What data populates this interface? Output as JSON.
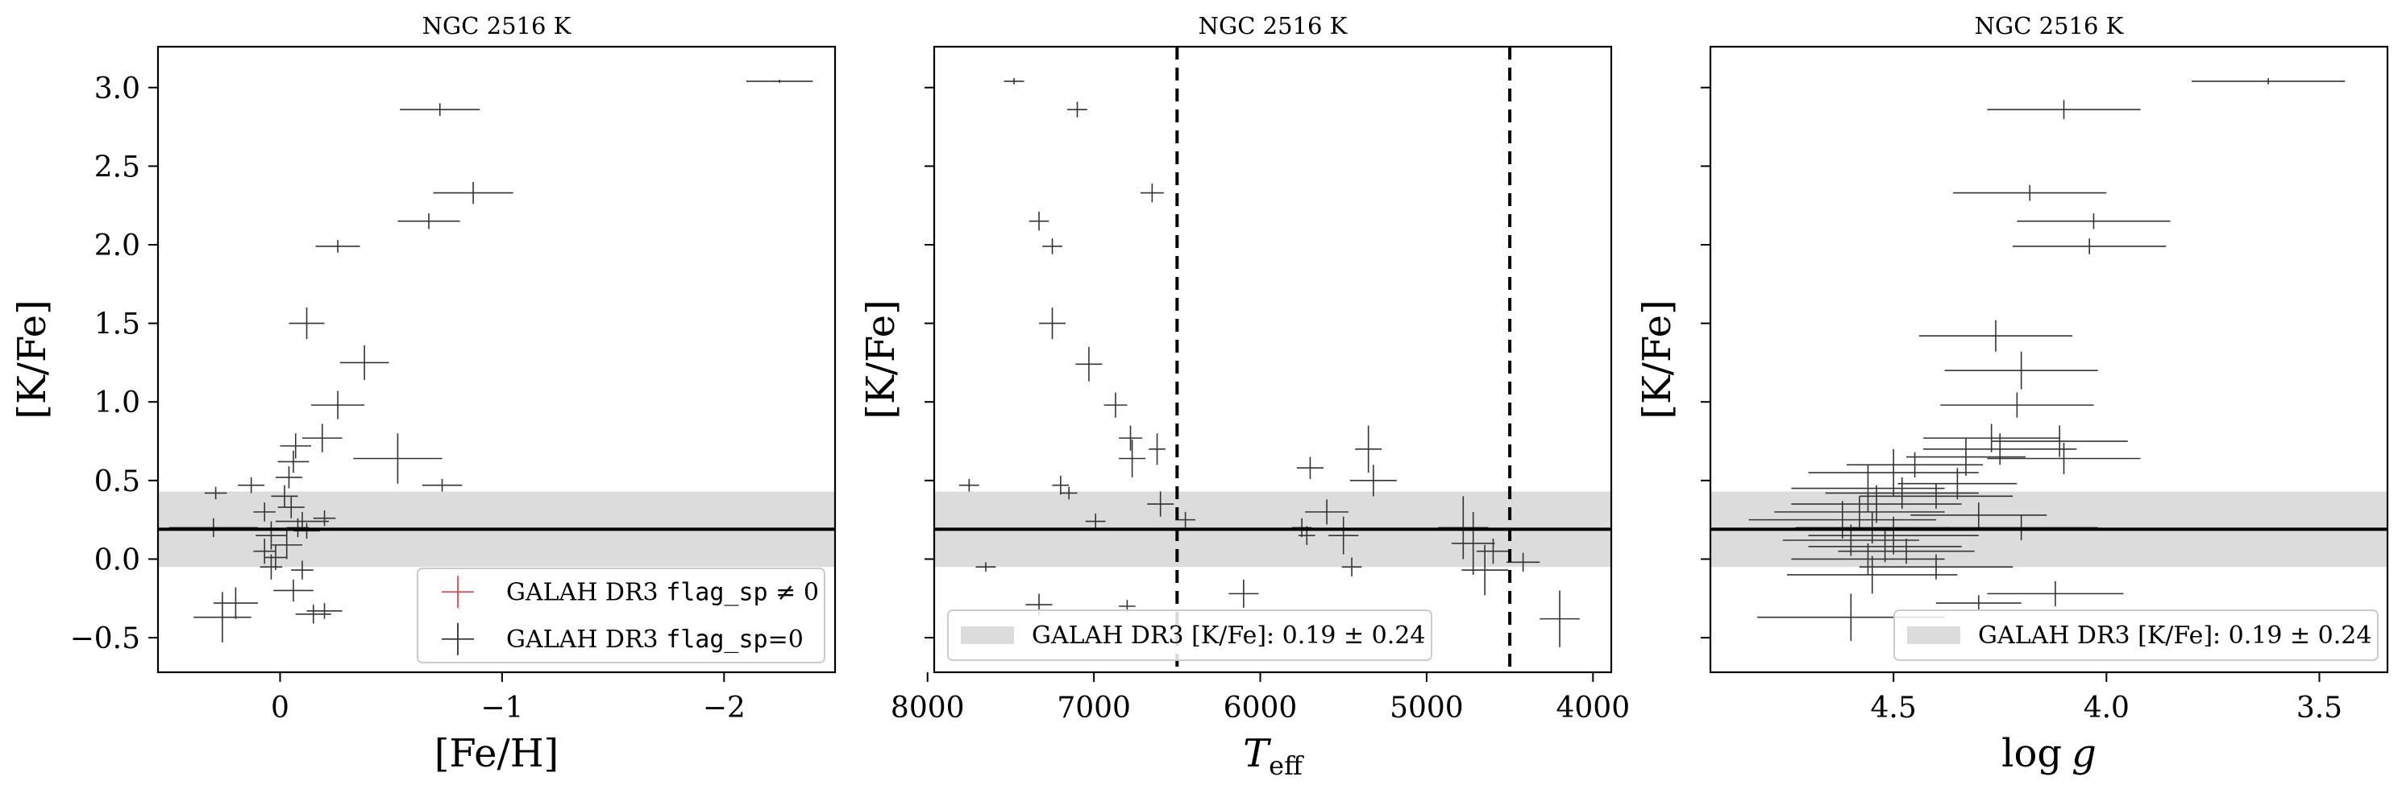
{
  "chart_data": [
    {
      "type": "scatter",
      "title": "NGC 2516 K",
      "xlabel": "[Fe/H]",
      "ylabel": "[K/Fe]",
      "xlim": [
        0.55,
        -2.5
      ],
      "ylim": [
        -0.72,
        3.26
      ],
      "x_inverted": true,
      "xticks": [
        0,
        -1,
        -2
      ],
      "xtick_labels": [
        "0",
        "−1",
        "−2"
      ],
      "yticks": [
        -0.5,
        0.0,
        0.5,
        1.0,
        1.5,
        2.0,
        2.5,
        3.0
      ],
      "ytick_labels": [
        "−0.5",
        "0.0",
        "0.5",
        "1.0",
        "1.5",
        "2.0",
        "2.5",
        "3.0"
      ],
      "band": {
        "center": 0.19,
        "sigma": 0.24
      },
      "legend": {
        "placement": "lower right",
        "entries": [
          {
            "marker": "cross",
            "color": "#e8434b",
            "pre": "GALAH DR3 ",
            "code": "flag_sp",
            "post": " ≠ 0"
          },
          {
            "marker": "cross",
            "color": "#333333",
            "pre": "GALAH DR3 ",
            "code": "flag_sp",
            "post": "=0"
          }
        ]
      },
      "series": [
        {
          "color": "#333333",
          "points": [
            [
              -2.25,
              3.04,
              0.15,
              0.01
            ],
            [
              -0.72,
              2.86,
              0.18,
              0.04
            ],
            [
              -0.87,
              2.33,
              0.18,
              0.07
            ],
            [
              -0.67,
              2.15,
              0.14,
              0.05
            ],
            [
              -0.26,
              1.99,
              0.1,
              0.04
            ],
            [
              -0.12,
              1.5,
              0.08,
              0.1
            ],
            [
              -0.38,
              1.25,
              0.11,
              0.11
            ],
            [
              -0.26,
              0.98,
              0.12,
              0.09
            ],
            [
              -0.19,
              0.77,
              0.09,
              0.09
            ],
            [
              -0.53,
              0.64,
              0.2,
              0.16
            ],
            [
              -0.73,
              0.47,
              0.09,
              0.04
            ],
            [
              -0.07,
              0.72,
              0.07,
              0.08
            ],
            [
              -0.06,
              0.62,
              0.07,
              0.07
            ],
            [
              -0.04,
              0.52,
              0.06,
              0.07
            ],
            [
              0.29,
              0.42,
              0.05,
              0.04
            ],
            [
              0.13,
              0.47,
              0.06,
              0.05
            ],
            [
              -0.02,
              0.4,
              0.06,
              0.07
            ],
            [
              -0.05,
              0.33,
              0.06,
              0.07
            ],
            [
              0.07,
              0.3,
              0.05,
              0.06
            ],
            [
              -0.1,
              0.24,
              0.12,
              0.06
            ],
            [
              -0.2,
              0.26,
              0.05,
              0.05
            ],
            [
              0.04,
              0.15,
              0.07,
              0.09
            ],
            [
              -0.03,
              0.09,
              0.07,
              0.09
            ],
            [
              0.07,
              0.05,
              0.05,
              0.08
            ],
            [
              0.02,
              0.01,
              0.05,
              0.08
            ],
            [
              0.04,
              -0.05,
              0.05,
              0.08
            ],
            [
              -0.1,
              -0.07,
              0.05,
              0.06
            ],
            [
              -0.08,
              0.2,
              0.05,
              0.06
            ],
            [
              -0.12,
              0.18,
              0.06,
              0.05
            ],
            [
              0.3,
              0.2,
              0.2,
              0.06
            ],
            [
              0.2,
              -0.28,
              0.1,
              0.1
            ],
            [
              0.26,
              -0.37,
              0.13,
              0.16
            ],
            [
              -0.15,
              -0.35,
              0.08,
              0.06
            ],
            [
              -0.2,
              -0.33,
              0.08,
              0.05
            ],
            [
              -0.06,
              -0.2,
              0.09,
              0.07
            ]
          ]
        }
      ]
    },
    {
      "type": "scatter",
      "title": "NGC 2516 K",
      "xlabel": "T_eff",
      "xlabel_main": "T",
      "xlabel_sub": "eff",
      "ylabel": "[K/Fe]",
      "xlim": [
        7960,
        3890
      ],
      "ylim": [
        -0.72,
        3.26
      ],
      "x_inverted": true,
      "xticks": [
        8000,
        7000,
        6000,
        5000,
        4000
      ],
      "xtick_labels": [
        "8000",
        "7000",
        "6000",
        "5000",
        "4000"
      ],
      "yticks": [
        -0.5,
        0.0,
        0.5,
        1.0,
        1.5,
        2.0,
        2.5,
        3.0
      ],
      "ytick_labels": [],
      "vlines": [
        6500,
        4500
      ],
      "band": {
        "center": 0.19,
        "sigma": 0.24
      },
      "legend": {
        "placement": "lower left",
        "entries": [
          {
            "marker": "patch",
            "color": "#dcdcdc",
            "text": "GALAH DR3 [K/Fe]: 0.19 ± 0.24"
          }
        ]
      },
      "series": [
        {
          "color": "#333333",
          "points": [
            [
              7480,
              3.04,
              60,
              0.02
            ],
            [
              7100,
              2.86,
              60,
              0.05
            ],
            [
              6650,
              2.33,
              70,
              0.06
            ],
            [
              7330,
              2.15,
              60,
              0.06
            ],
            [
              7250,
              1.99,
              60,
              0.05
            ],
            [
              7250,
              1.5,
              80,
              0.1
            ],
            [
              7030,
              1.24,
              80,
              0.11
            ],
            [
              6870,
              0.98,
              70,
              0.08
            ],
            [
              6780,
              0.77,
              70,
              0.08
            ],
            [
              6770,
              0.64,
              80,
              0.12
            ],
            [
              6620,
              0.7,
              50,
              0.1
            ],
            [
              7750,
              0.47,
              60,
              0.04
            ],
            [
              7200,
              0.47,
              50,
              0.06
            ],
            [
              7150,
              0.42,
              50,
              0.04
            ],
            [
              6990,
              0.24,
              60,
              0.05
            ],
            [
              6600,
              0.35,
              80,
              0.08
            ],
            [
              6450,
              0.25,
              60,
              0.05
            ],
            [
              7650,
              -0.05,
              60,
              0.03
            ],
            [
              7330,
              -0.29,
              80,
              0.07
            ],
            [
              6800,
              -0.3,
              50,
              0.04
            ],
            [
              6100,
              -0.22,
              90,
              0.09
            ],
            [
              5700,
              0.58,
              80,
              0.07
            ],
            [
              5350,
              0.7,
              80,
              0.15
            ],
            [
              5320,
              0.5,
              140,
              0.1
            ],
            [
              5600,
              0.3,
              130,
              0.08
            ],
            [
              5750,
              0.2,
              60,
              0.06
            ],
            [
              5720,
              0.15,
              50,
              0.06
            ],
            [
              5500,
              0.15,
              90,
              0.12
            ],
            [
              5450,
              -0.05,
              60,
              0.06
            ],
            [
              4780,
              0.2,
              150,
              0.2
            ],
            [
              4720,
              0.1,
              130,
              0.2
            ],
            [
              4650,
              -0.07,
              140,
              0.16
            ],
            [
              4600,
              0.05,
              100,
              0.08
            ],
            [
              4420,
              -0.02,
              100,
              0.06
            ],
            [
              4200,
              -0.38,
              120,
              0.18
            ]
          ]
        }
      ]
    },
    {
      "type": "scatter",
      "title": "NGC 2516 K",
      "xlabel": "log g",
      "xlabel_main": "log",
      "xlabel_sub": "g",
      "ylabel": "[K/Fe]",
      "xlim": [
        4.93,
        3.34
      ],
      "ylim": [
        -0.72,
        3.26
      ],
      "x_inverted": true,
      "xticks": [
        4.5,
        4.0,
        3.5
      ],
      "xtick_labels": [
        "4.5",
        "4.0",
        "3.5"
      ],
      "yticks": [
        -0.5,
        0.0,
        0.5,
        1.0,
        1.5,
        2.0,
        2.5,
        3.0
      ],
      "ytick_labels": [],
      "band": {
        "center": 0.19,
        "sigma": 0.24
      },
      "legend": {
        "placement": "lower right",
        "entries": [
          {
            "marker": "patch",
            "color": "#dcdcdc",
            "text": "GALAH DR3 [K/Fe]: 0.19 ± 0.24"
          }
        ]
      },
      "series": [
        {
          "color": "#333333",
          "points": [
            [
              3.62,
              3.04,
              0.18,
              0.02
            ],
            [
              4.1,
              2.86,
              0.18,
              0.06
            ],
            [
              4.18,
              2.33,
              0.18,
              0.05
            ],
            [
              4.03,
              2.15,
              0.18,
              0.05
            ],
            [
              4.04,
              1.99,
              0.18,
              0.05
            ],
            [
              4.26,
              1.42,
              0.18,
              0.1
            ],
            [
              4.2,
              1.2,
              0.18,
              0.12
            ],
            [
              4.21,
              0.98,
              0.18,
              0.08
            ],
            [
              4.27,
              0.77,
              0.16,
              0.09
            ],
            [
              4.11,
              0.75,
              0.16,
              0.1
            ],
            [
              4.1,
              0.64,
              0.18,
              0.1
            ],
            [
              4.25,
              0.7,
              0.18,
              0.1
            ],
            [
              4.33,
              0.65,
              0.14,
              0.12
            ],
            [
              4.45,
              0.6,
              0.16,
              0.08
            ],
            [
              4.5,
              0.55,
              0.2,
              0.15
            ],
            [
              4.56,
              0.45,
              0.18,
              0.15
            ],
            [
              4.48,
              0.42,
              0.18,
              0.1
            ],
            [
              4.4,
              0.4,
              0.18,
              0.08
            ],
            [
              4.54,
              0.35,
              0.2,
              0.12
            ],
            [
              4.58,
              0.3,
              0.2,
              0.1
            ],
            [
              4.62,
              0.25,
              0.22,
              0.12
            ],
            [
              4.55,
              0.2,
              0.18,
              0.1
            ],
            [
              4.5,
              0.15,
              0.2,
              0.12
            ],
            [
              4.6,
              0.12,
              0.16,
              0.1
            ],
            [
              4.52,
              0.08,
              0.18,
              0.1
            ],
            [
              4.47,
              0.05,
              0.16,
              0.08
            ],
            [
              4.56,
              0.0,
              0.18,
              0.1
            ],
            [
              4.4,
              -0.05,
              0.18,
              0.08
            ],
            [
              4.55,
              -0.1,
              0.2,
              0.12
            ],
            [
              4.3,
              0.28,
              0.16,
              0.08
            ],
            [
              4.2,
              0.2,
              0.18,
              0.08
            ],
            [
              4.12,
              -0.22,
              0.16,
              0.08
            ],
            [
              4.3,
              -0.28,
              0.1,
              0.05
            ],
            [
              4.6,
              -0.37,
              0.22,
              0.15
            ],
            [
              4.35,
              0.48,
              0.14,
              0.1
            ]
          ]
        }
      ]
    }
  ]
}
